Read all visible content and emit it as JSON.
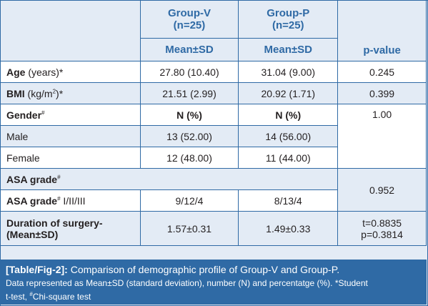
{
  "header": {
    "group_v_title": "Group-V",
    "group_v_n": "(n=25)",
    "group_p_title": "Group-P",
    "group_p_n": "(n=25)",
    "stat_v": "Mean±SD",
    "stat_p": "Mean±SD",
    "pvalue": "p-value"
  },
  "rows": {
    "age": {
      "label": "Age",
      "unit": " (years)",
      "mark": "*",
      "v": "27.80 (10.40)",
      "p": "31.04 (9.00)",
      "pval": "0.245"
    },
    "bmi": {
      "label": "BMI",
      "unit": " (kg/m",
      "sup2": "2",
      "unit_close": ")",
      "mark": "*",
      "v": "21.51 (2.99)",
      "p": "20.92 (1.71)",
      "pval": "0.399"
    },
    "gender": {
      "label": "Gender",
      "mark": "#",
      "v": "N (%)",
      "p": "N (%)",
      "pval": "1.00"
    },
    "male": {
      "label": "Male",
      "v": "13 (52.00)",
      "p": "14 (56.00)"
    },
    "female": {
      "label": "Female",
      "v": "12 (48.00)",
      "p": "11 (44.00)"
    },
    "asa": {
      "label": "ASA grade",
      "mark": "#",
      "pval": "0.952"
    },
    "asa_detail": {
      "label": "ASA grade",
      "mark": "#",
      "suffix": " I/II/III",
      "v": "9/12/4",
      "p": "8/13/4"
    },
    "duration": {
      "label_line1": "Duration of surgery-",
      "label_line2": "(Mean±SD)",
      "v": "1.57±0.31",
      "p": "1.49±0.33",
      "pval_line1": "t=0.8835",
      "pval_line2": "p=0.3814"
    }
  },
  "caption": {
    "tag": "[Table/Fig-2]:",
    "title": " Comparison of demographic profile of Group-V and Group-P.",
    "note1": "Data represented as Mean±SD (standard deviation), number (N) and percentatge (%). *Student",
    "note2_a": "t-test, ",
    "note2_mark": "#",
    "note2_b": "Chi-square test"
  },
  "colors": {
    "accent": "#2f6aa5",
    "light_row": "#e3ebf5",
    "white_row": "#ffffff"
  }
}
